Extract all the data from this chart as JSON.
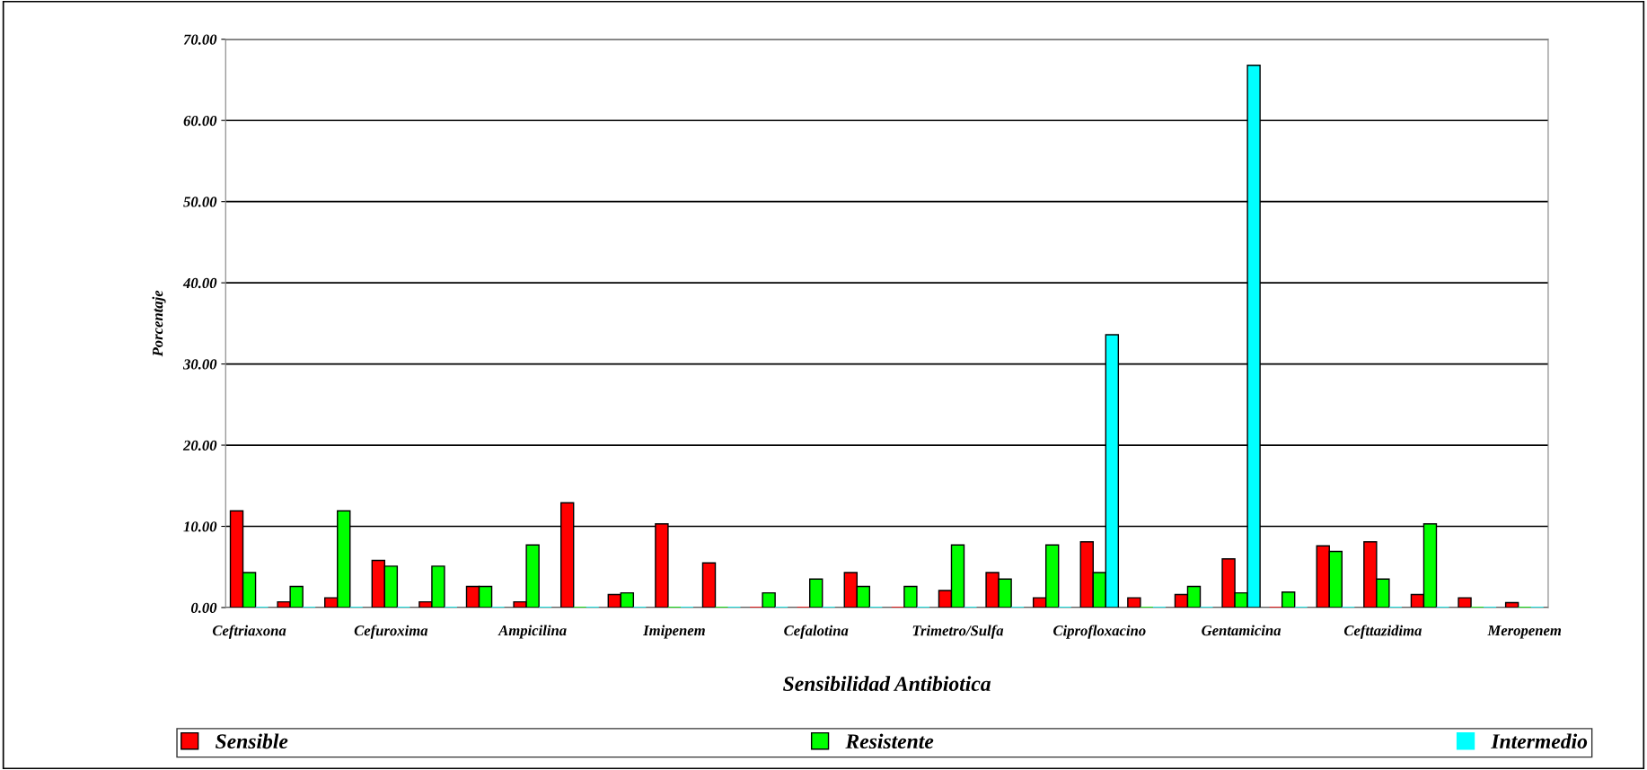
{
  "chart_data": {
    "type": "bar",
    "xlabel": "Sensibilidad Antibiotica",
    "ylabel": "Porcentaje",
    "categories": [
      "Ceftriaxona",
      null,
      null,
      "Cefuroxima",
      null,
      null,
      "Ampicilina",
      null,
      null,
      "Imipenem",
      null,
      null,
      "Cefalotina",
      null,
      null,
      "Trimetro/Sulfa",
      null,
      null,
      "Ciprofloxacino",
      null,
      null,
      "Gentamicina",
      null,
      null,
      "Cefttazidima",
      null,
      null,
      "Meropenem"
    ],
    "series": [
      {
        "name": "Sensible",
        "color": "#ff0000",
        "values": [
          11.9,
          0.7,
          1.2,
          5.8,
          0.7,
          2.6,
          0.7,
          12.9,
          1.6,
          10.3,
          5.5,
          0,
          0,
          4.3,
          0,
          2.1,
          4.3,
          1.2,
          8.1,
          1.2,
          1.6,
          6.0,
          0,
          7.6,
          8.1,
          1.6,
          1.2,
          0.6
        ]
      },
      {
        "name": "Resistente",
        "color": "#00ff00",
        "values": [
          4.3,
          2.6,
          11.9,
          5.1,
          5.1,
          2.6,
          7.7,
          0,
          1.8,
          0,
          0,
          1.8,
          3.5,
          2.6,
          2.6,
          7.7,
          3.5,
          7.7,
          4.3,
          0,
          2.6,
          1.8,
          1.9,
          6.9,
          3.5,
          10.3,
          0,
          0
        ]
      },
      {
        "name": "Intermedio",
        "color": "#00ffff",
        "values": [
          0,
          0,
          0,
          0,
          0,
          0,
          0,
          0,
          0,
          0,
          0,
          0,
          0,
          0,
          0,
          0,
          0,
          0,
          33.6,
          0,
          0,
          66.8,
          0,
          0,
          0,
          0,
          0,
          0
        ]
      }
    ],
    "ylim": [
      0,
      70
    ],
    "yticks": [
      {
        "value": 0,
        "label": "0.00"
      },
      {
        "value": 10,
        "label": "10.00"
      },
      {
        "value": 20,
        "label": "20.00"
      },
      {
        "value": 30,
        "label": "30.00"
      },
      {
        "value": 40,
        "label": "40.00"
      },
      {
        "value": 50,
        "label": "50.00"
      },
      {
        "value": 60,
        "label": "60.00"
      },
      {
        "value": 70,
        "label": "70.00"
      }
    ],
    "grid": "y",
    "legend": "bottom"
  }
}
